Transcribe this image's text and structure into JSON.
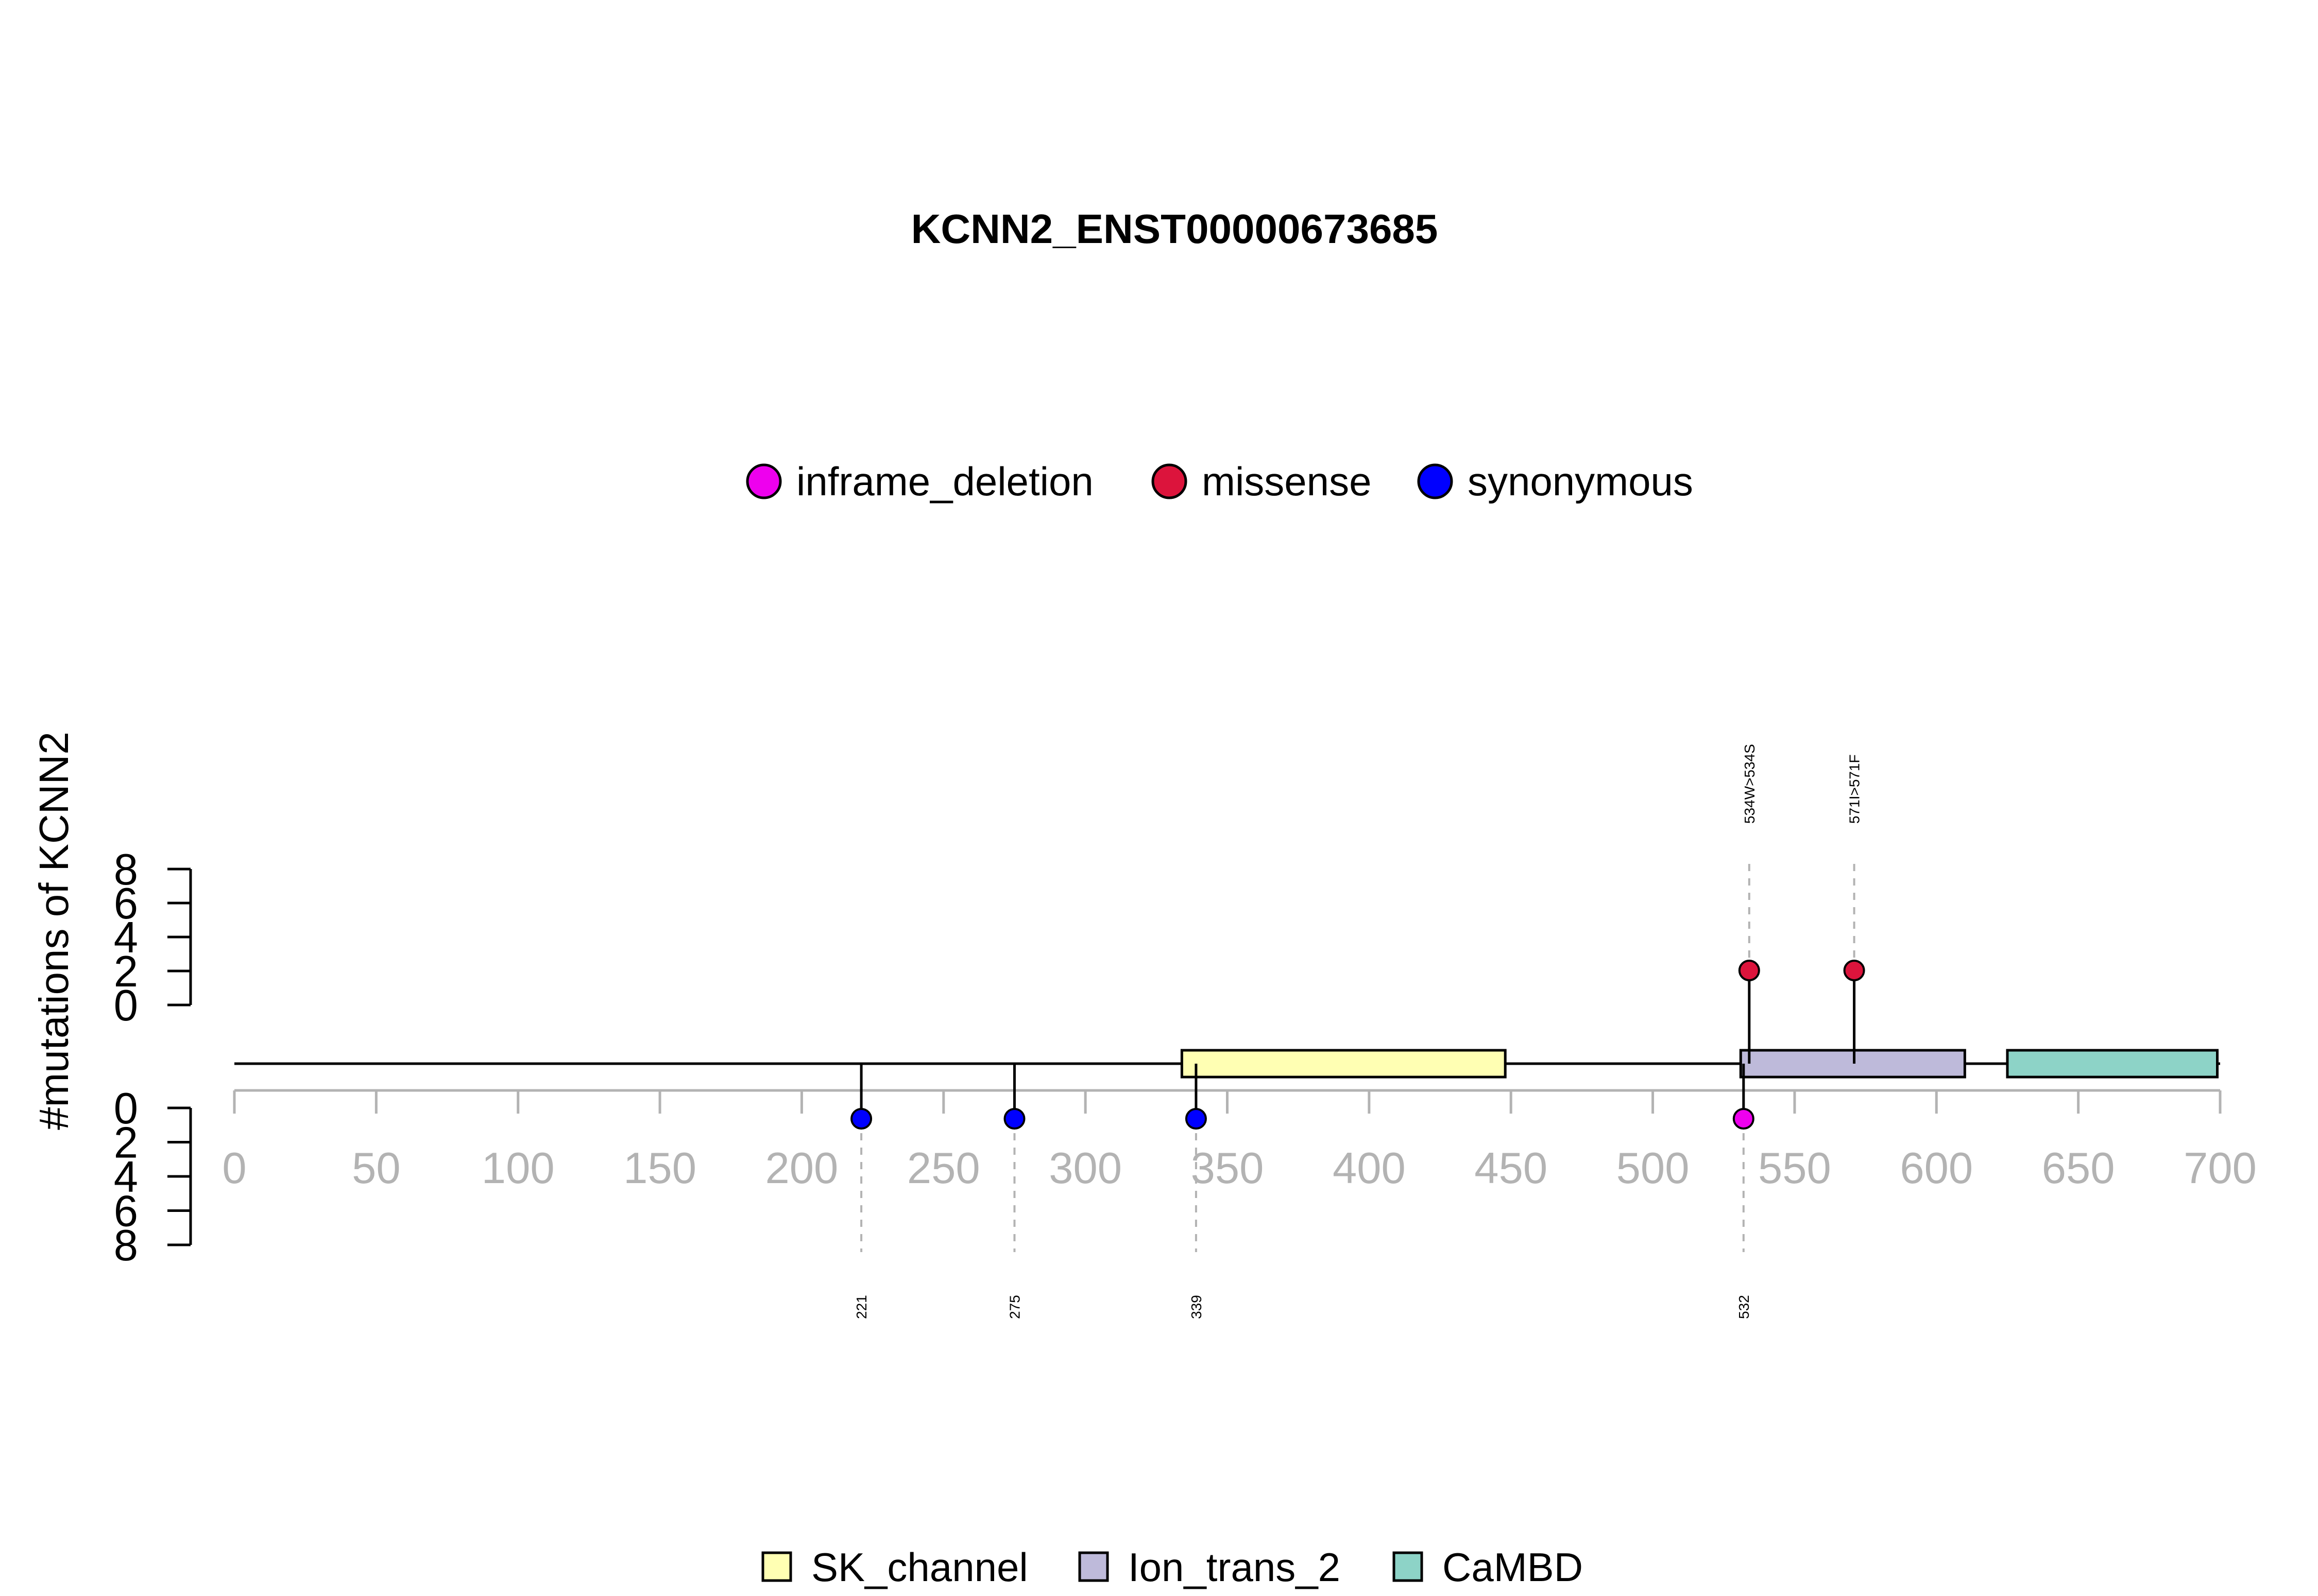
{
  "chart_data": {
    "type": "lollipop",
    "title": "KCNN2_ENST00000673685",
    "ylabel": "#mutations of KCNN2",
    "xlim": [
      0,
      700
    ],
    "x_ticks": [
      0,
      50,
      100,
      150,
      200,
      250,
      300,
      350,
      400,
      450,
      500,
      550,
      600,
      650,
      700
    ],
    "ylim_top": [
      0,
      8
    ],
    "ylim_bottom": [
      0,
      8
    ],
    "y_ticks_top": [
      0,
      2,
      4,
      6,
      8
    ],
    "y_ticks_bottom": [
      0,
      2,
      4,
      6,
      8
    ],
    "mutation_legend": {
      "placement": "top-center",
      "entries": [
        {
          "label": "inframe_deletion",
          "color": "#ee00ee"
        },
        {
          "label": "missense",
          "color": "#dc143c"
        },
        {
          "label": "synonymous",
          "color": "#0000ff"
        }
      ]
    },
    "domain_legend": {
      "placement": "bottom-center",
      "entries": [
        {
          "label": "SK_channel",
          "color": "#ffffb3"
        },
        {
          "label": "Ion_trans_2",
          "color": "#bebada"
        },
        {
          "label": "CaMBD",
          "color": "#8dd3c7"
        }
      ]
    },
    "protein_length": 700,
    "domains": [
      {
        "name": "SK_channel",
        "start": 334,
        "end": 448,
        "color": "#ffffb3"
      },
      {
        "name": "Ion_trans_2",
        "start": 531,
        "end": 610,
        "color": "#bebada"
      },
      {
        "name": "CaMBD",
        "start": 625,
        "end": 699,
        "color": "#8dd3c7"
      }
    ],
    "mutations_top": [
      {
        "position": 534,
        "count": 1,
        "type": "missense",
        "color": "#dc143c",
        "label": "534W>534S"
      },
      {
        "position": 571,
        "count": 1,
        "type": "missense",
        "color": "#dc143c",
        "label": "571I>571F"
      }
    ],
    "mutations_bottom": [
      {
        "position": 221,
        "count": 1,
        "type": "synonymous",
        "color": "#0000ff",
        "label": "221"
      },
      {
        "position": 275,
        "count": 1,
        "type": "synonymous",
        "color": "#0000ff",
        "label": "275"
      },
      {
        "position": 339,
        "count": 1,
        "type": "synonymous",
        "color": "#0000ff",
        "label": "339"
      },
      {
        "position": 532,
        "count": 1,
        "type": "inframe_deletion",
        "color": "#ee00ee",
        "label": "532"
      }
    ]
  }
}
